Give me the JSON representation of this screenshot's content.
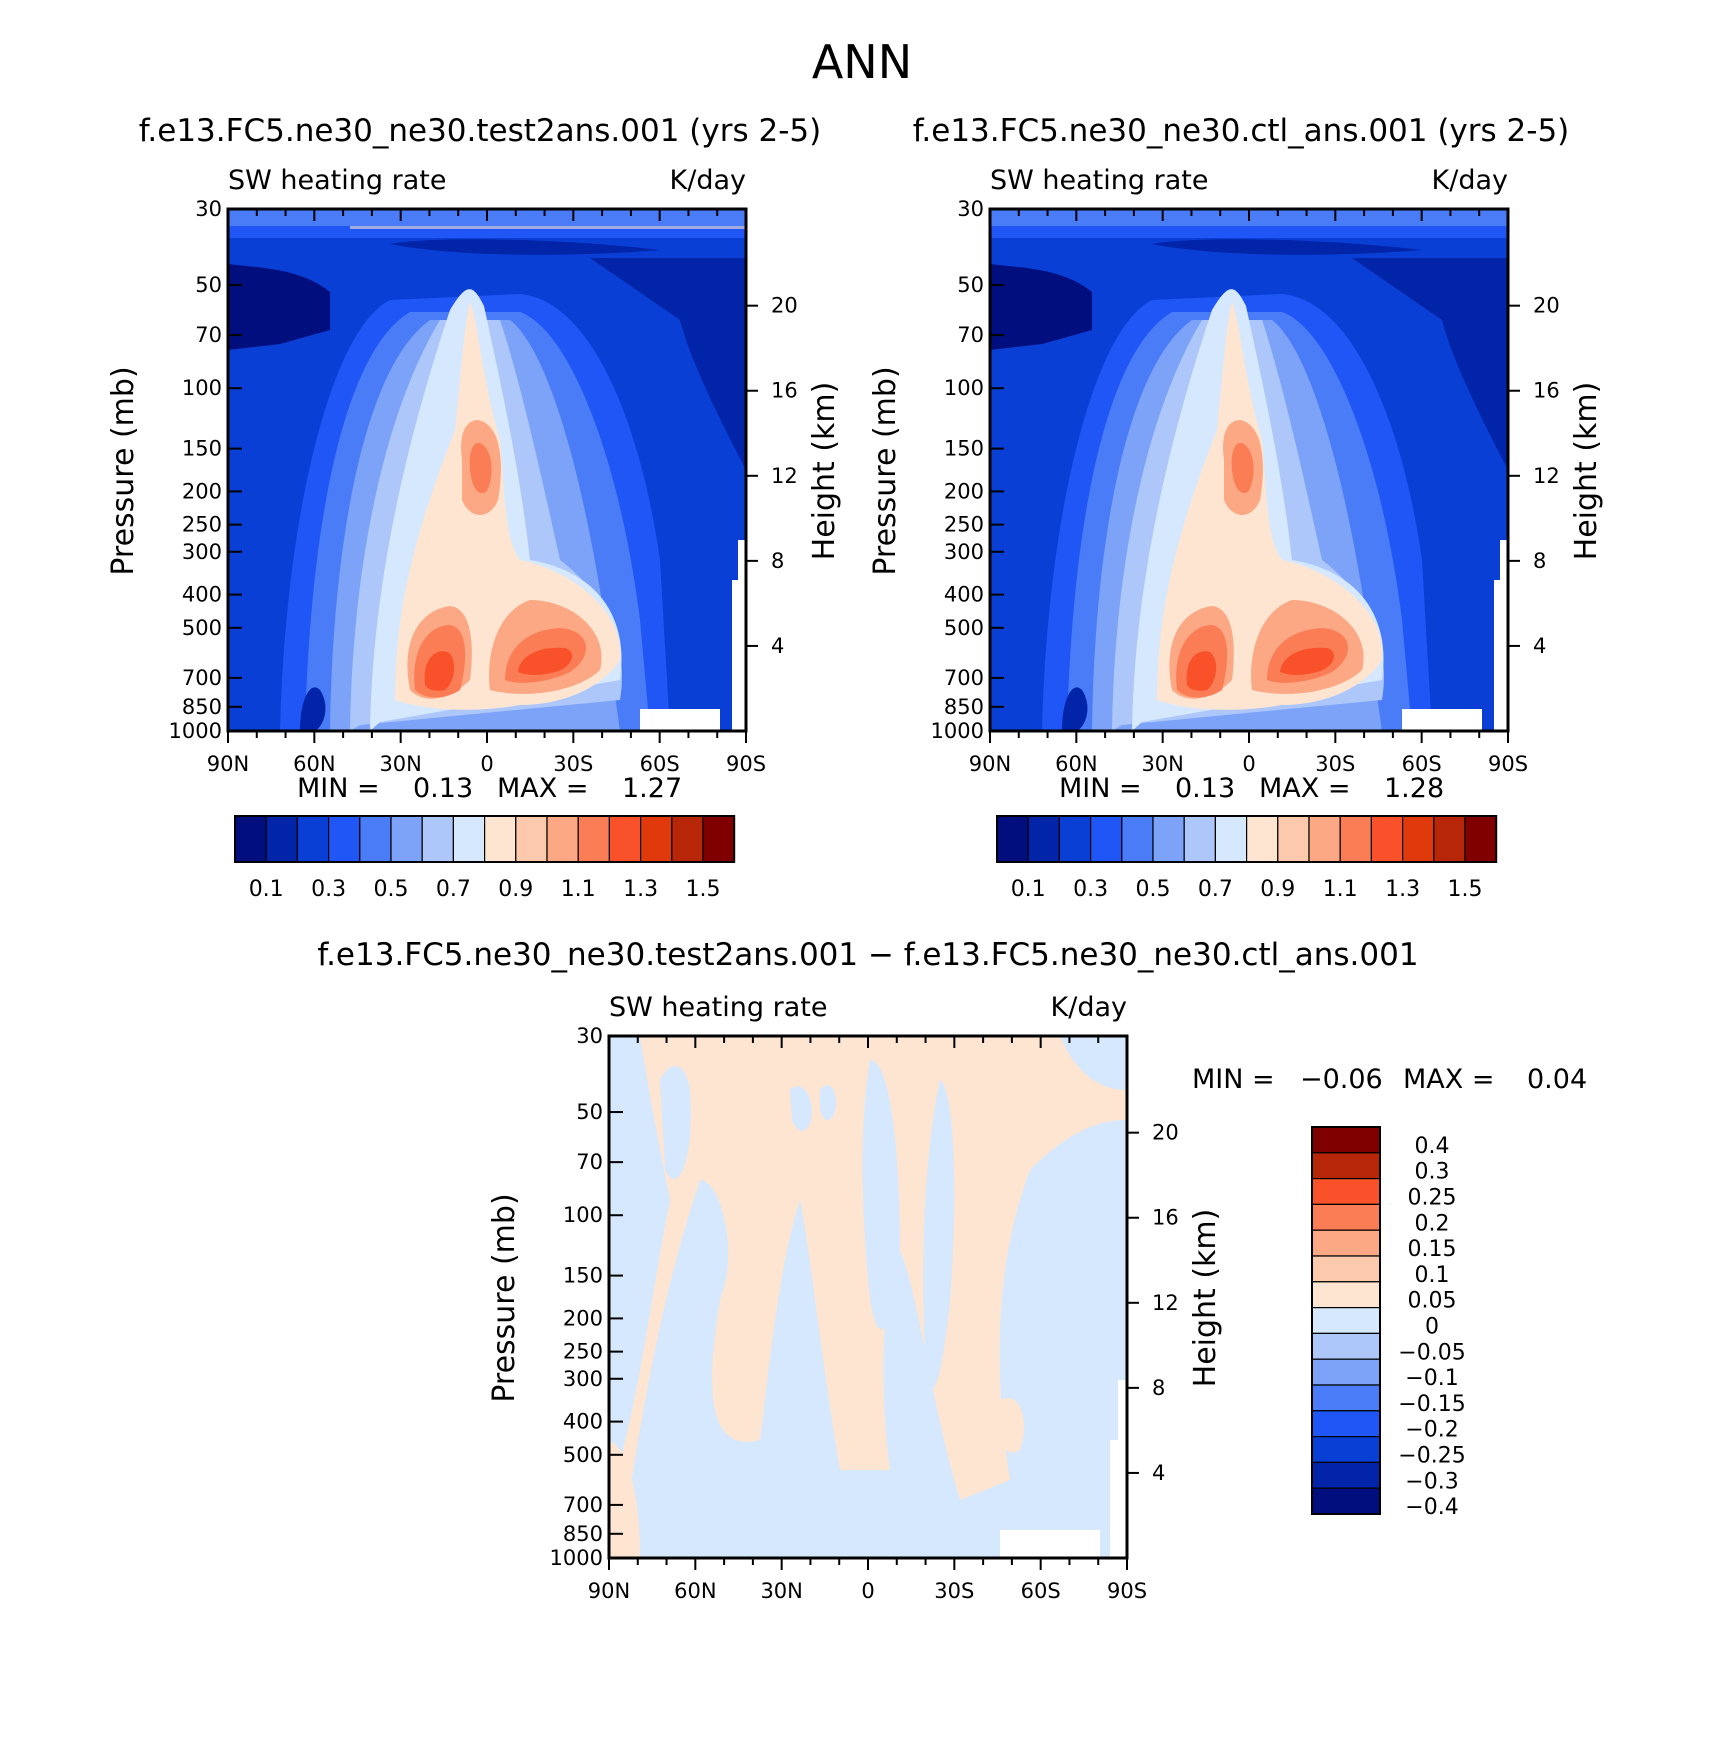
{
  "page_title": "ANN",
  "panels": [
    {
      "id": "test",
      "case_title": "f.e13.FC5.ne30_ne30.test2ans.001 (yrs 2-5)",
      "variable": "SW heating rate",
      "units": "K/day",
      "min_label": "MIN =",
      "min_value": "0.13",
      "max_label": "MAX =",
      "max_value": "1.27"
    },
    {
      "id": "ctl",
      "case_title": "f.e13.FC5.ne30_ne30.ctl_ans.001 (yrs 2-5)",
      "variable": "SW heating rate",
      "units": "K/day",
      "min_label": "MIN =",
      "min_value": "0.13",
      "max_label": "MAX =",
      "max_value": "1.28"
    },
    {
      "id": "diff",
      "case_title": "f.e13.FC5.ne30_ne30.test2ans.001 − f.e13.FC5.ne30_ne30.ctl_ans.001",
      "variable": "SW heating rate",
      "units": "K/day",
      "min_label": "MIN =",
      "min_value": "−0.06",
      "max_label": "MAX =",
      "max_value": "0.04"
    }
  ],
  "axes": {
    "ylabel_left": "Pressure (mb)",
    "ylabel_right": "Height (km)",
    "x_ticks": [
      "90N",
      "60N",
      "30N",
      "0",
      "30S",
      "60S",
      "90S"
    ],
    "pressure_ticks": [
      "30",
      "50",
      "70",
      "100",
      "150",
      "200",
      "250",
      "300",
      "400",
      "500",
      "700",
      "850",
      "1000"
    ],
    "height_ticks": [
      "20",
      "16",
      "12",
      "8",
      "4"
    ]
  },
  "colorbars": {
    "main": {
      "colors": [
        "#000f7d",
        "#0224a8",
        "#0a3fd6",
        "#1f56f5",
        "#4a7cf7",
        "#7da3f9",
        "#adc7fb",
        "#d6e8fd",
        "#fde5d2",
        "#fcc9ad",
        "#fca884",
        "#fb7d55",
        "#f9522a",
        "#e03a0c",
        "#b8260a",
        "#800000"
      ],
      "labels": [
        "0.1",
        "0.3",
        "0.5",
        "0.7",
        "0.9",
        "1.1",
        "1.3",
        "1.5"
      ]
    },
    "diff": {
      "colors": [
        "#800000",
        "#b8260a",
        "#f9522a",
        "#fb7d55",
        "#fca884",
        "#fcc9ad",
        "#fde5d2",
        "#d6e8fd",
        "#adc7fb",
        "#7da3f9",
        "#4a7cf7",
        "#1f56f5",
        "#0a3fd6",
        "#0224a8",
        "#000f7d"
      ],
      "labels": [
        "0.4",
        "0.3",
        "0.25",
        "0.2",
        "0.15",
        "0.1",
        "0.05",
        "0",
        "−0.05",
        "−0.1",
        "−0.15",
        "−0.2",
        "−0.25",
        "−0.3",
        "−0.4"
      ]
    }
  },
  "chart_data": [
    {
      "type": "heatmap",
      "title": "f.e13.FC5.ne30_ne30.test2ans.001 (yrs 2-5)",
      "subtitle": "SW heating rate",
      "units": "K/day",
      "x": "latitude 90N to 90S",
      "y": "pressure 30 to 1000 mb",
      "xlabel": "",
      "ylabel": "Pressure (mb)",
      "min": 0.13,
      "max": 1.27,
      "levels": [
        0.1,
        0.2,
        0.3,
        0.4,
        0.5,
        0.6,
        0.7,
        0.8,
        0.9,
        1.0,
        1.1,
        1.2,
        1.3,
        1.4,
        1.5
      ]
    },
    {
      "type": "heatmap",
      "title": "f.e13.FC5.ne30_ne30.ctl_ans.001 (yrs 2-5)",
      "subtitle": "SW heating rate",
      "units": "K/day",
      "x": "latitude 90N to 90S",
      "y": "pressure 30 to 1000 mb",
      "xlabel": "",
      "ylabel": "Pressure (mb)",
      "min": 0.13,
      "max": 1.28,
      "levels": [
        0.1,
        0.2,
        0.3,
        0.4,
        0.5,
        0.6,
        0.7,
        0.8,
        0.9,
        1.0,
        1.1,
        1.2,
        1.3,
        1.4,
        1.5
      ]
    },
    {
      "type": "heatmap",
      "title": "f.e13.FC5.ne30_ne30.test2ans.001 − f.e13.FC5.ne30_ne30.ctl_ans.001",
      "subtitle": "SW heating rate",
      "units": "K/day",
      "x": "latitude 90N to 90S",
      "y": "pressure 30 to 1000 mb",
      "xlabel": "",
      "ylabel": "Pressure (mb)",
      "min": -0.06,
      "max": 0.04,
      "levels": [
        -0.4,
        -0.3,
        -0.25,
        -0.2,
        -0.15,
        -0.1,
        -0.05,
        0,
        0.05,
        0.1,
        0.15,
        0.2,
        0.25,
        0.3,
        0.4
      ]
    }
  ]
}
